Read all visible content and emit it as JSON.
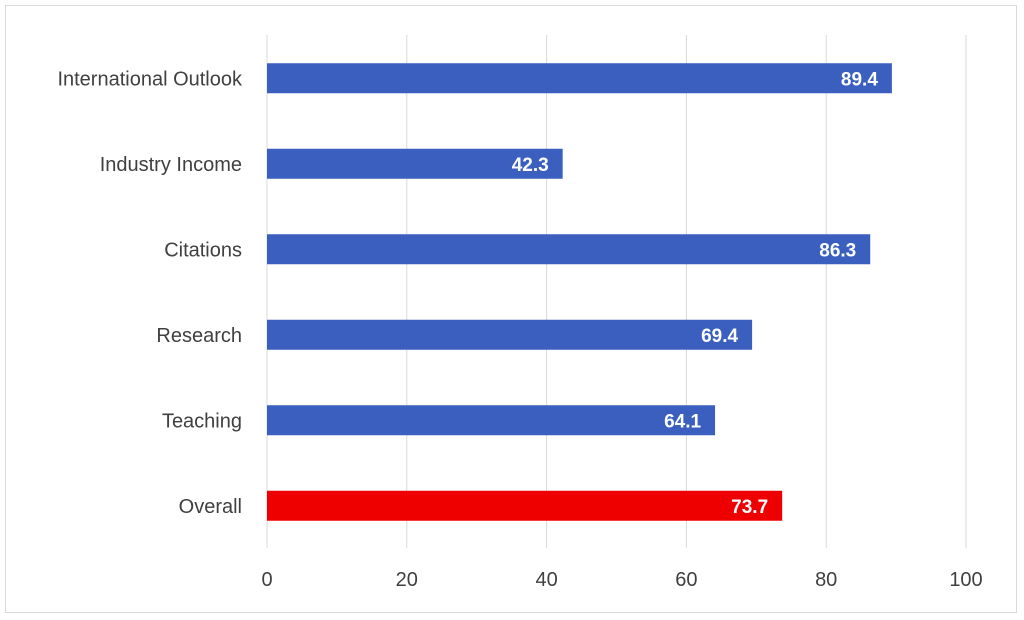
{
  "chart_data": {
    "type": "bar",
    "orientation": "horizontal",
    "categories": [
      "International Outlook",
      "Industry Income",
      "Citations",
      "Research",
      "Teaching",
      "Overall"
    ],
    "values": [
      89.4,
      42.3,
      86.3,
      69.4,
      64.1,
      73.7
    ],
    "data_labels": [
      "89.4",
      "42.3",
      "86.3",
      "69.4",
      "64.1",
      "73.7"
    ],
    "bar_colors": [
      "#3a5fbe",
      "#3a5fbe",
      "#3a5fbe",
      "#3a5fbe",
      "#3a5fbe",
      "#ee0000"
    ],
    "x_ticks": [
      "0",
      "20",
      "40",
      "60",
      "80",
      "100"
    ],
    "xlim": [
      0,
      100
    ],
    "title": "",
    "xlabel": "",
    "ylabel": "",
    "grid": "vertical",
    "legend": "none"
  }
}
